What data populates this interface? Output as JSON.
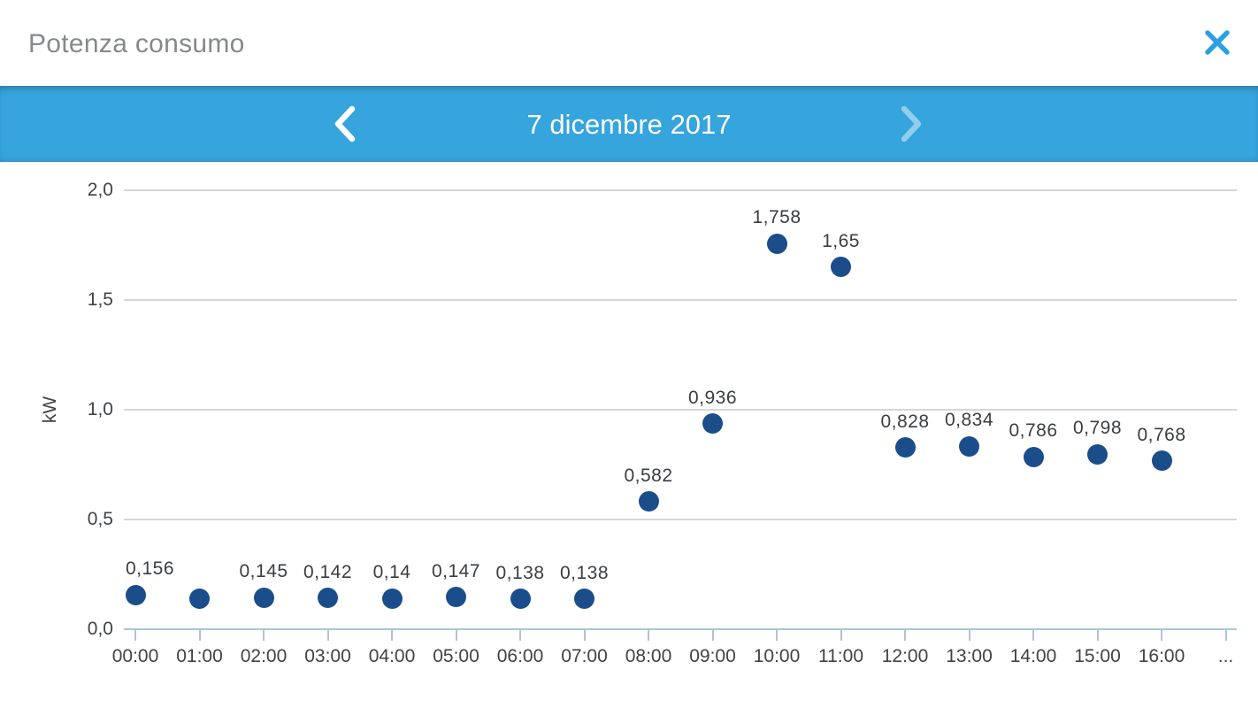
{
  "window": {
    "title": "Potenza consumo",
    "close_icon": "close-x"
  },
  "date_nav": {
    "prev_icon": "chevron-left",
    "date_label": "7 dicembre 2017",
    "next_icon": "chevron-right"
  },
  "colors": {
    "header_blue": "#36a4dd",
    "close_blue": "#2aa1e3",
    "dot_navy": "#1b4d8b",
    "grid_gray": "#d6d6d6",
    "axis_blue": "#aac5de",
    "title_gray": "#85898e",
    "tick_dark": "#3f4347",
    "label_dark": "#3a3d41"
  },
  "chart_data": {
    "type": "scatter",
    "title": "Potenza consumo",
    "xlabel": "",
    "ylabel": "kW",
    "x": [
      "00:00",
      "01:00",
      "02:00",
      "03:00",
      "04:00",
      "05:00",
      "06:00",
      "07:00",
      "08:00",
      "09:00",
      "10:00",
      "11:00",
      "12:00",
      "13:00",
      "14:00",
      "15:00",
      "16:00"
    ],
    "x_overflow_label": "...",
    "values": [
      0.156,
      0.14,
      0.145,
      0.142,
      0.14,
      0.147,
      0.138,
      0.138,
      0.582,
      0.936,
      1.758,
      1.65,
      0.828,
      0.834,
      0.786,
      0.798,
      0.768
    ],
    "point_labels": [
      "0,156",
      "",
      "0,145",
      "0,142",
      "0,14",
      "0,147",
      "0,138",
      "0,138",
      "0,582",
      "0,936",
      "1,758",
      "1,65",
      "0,828",
      "0,834",
      "0,786",
      "0,798",
      "0,768"
    ],
    "yticks": [
      "0,0",
      "0,5",
      "1,0",
      "1,5",
      "2,0"
    ],
    "ylim": [
      0,
      2
    ],
    "grid": true,
    "legend": "none"
  }
}
